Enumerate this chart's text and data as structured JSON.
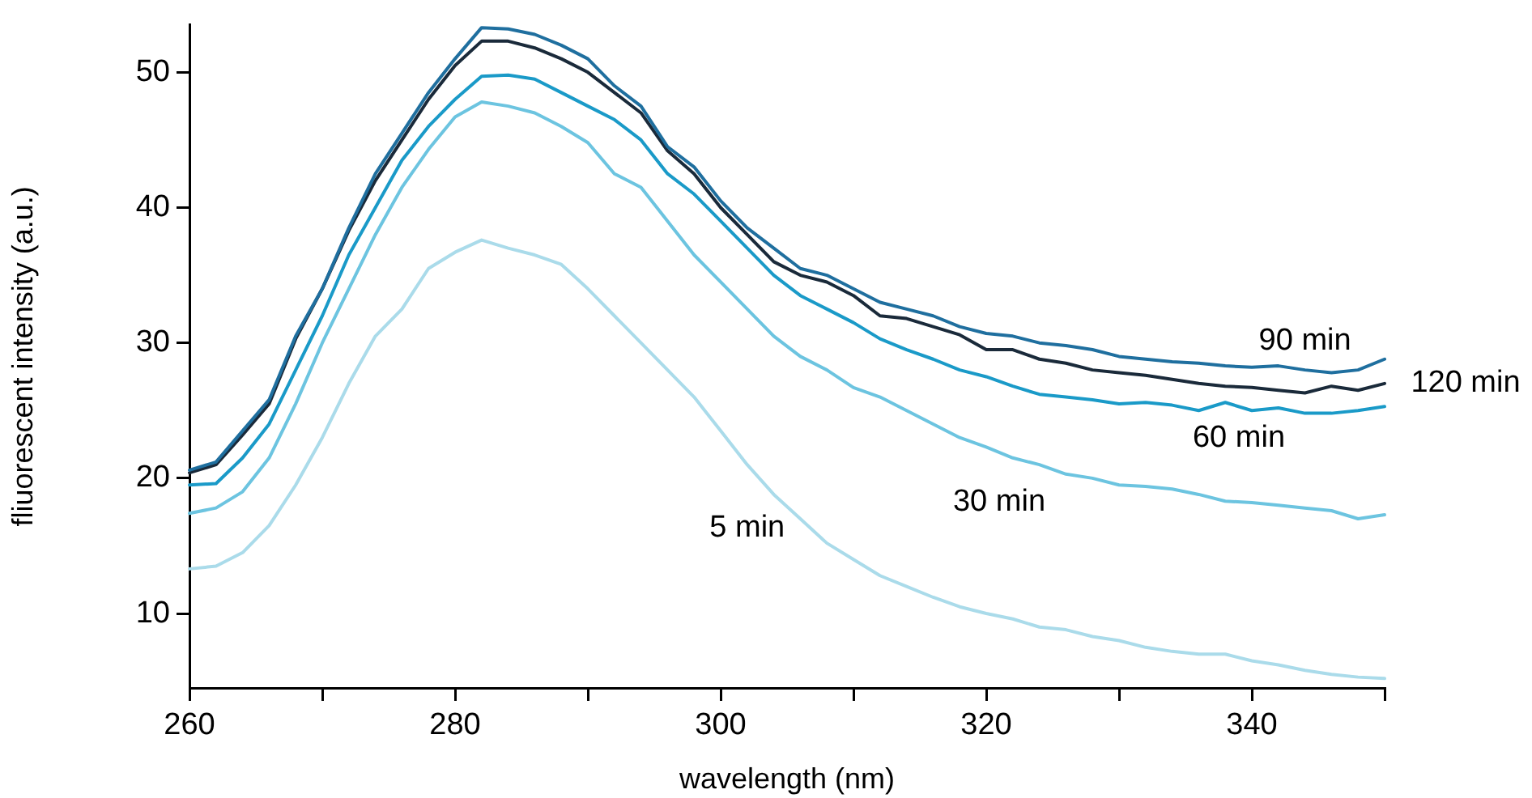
{
  "chart_data": {
    "type": "line",
    "xlabel": "wavelength (nm)",
    "ylabel": "fliuorescent intensity (a.u.)",
    "x": [
      260,
      262,
      264,
      266,
      268,
      270,
      272,
      274,
      276,
      278,
      280,
      282,
      284,
      286,
      288,
      290,
      292,
      294,
      296,
      298,
      300,
      302,
      304,
      306,
      308,
      310,
      312,
      314,
      316,
      318,
      320,
      322,
      324,
      326,
      328,
      330,
      332,
      334,
      336,
      338,
      340,
      342,
      344,
      346,
      348,
      350
    ],
    "series": [
      {
        "name": "5 min",
        "color": "#aadbea",
        "values": [
          13.3,
          13.5,
          14.5,
          16.5,
          19.5,
          23,
          27,
          30.5,
          32.5,
          35.5,
          36.7,
          37.6,
          37,
          36.5,
          35.8,
          34,
          32,
          30,
          28,
          26,
          23.5,
          21,
          18.8,
          17,
          15.2,
          14,
          12.8,
          12,
          11.2,
          10.5,
          10,
          9.6,
          9,
          8.8,
          8.3,
          8,
          7.5,
          7.2,
          7,
          7,
          6.5,
          6.2,
          5.8,
          5.5,
          5.3,
          5.2
        ]
      },
      {
        "name": "30 min",
        "color": "#6cc4e0",
        "values": [
          17.4,
          17.8,
          19,
          21.5,
          25.5,
          30,
          34,
          38,
          41.5,
          44.3,
          46.7,
          47.8,
          47.5,
          47,
          46,
          44.8,
          42.5,
          41.5,
          39,
          36.5,
          34.5,
          32.5,
          30.5,
          29,
          28,
          26.7,
          26,
          25,
          24,
          23,
          22.3,
          21.5,
          21,
          20.3,
          20,
          19.5,
          19.4,
          19.2,
          18.8,
          18.3,
          18.2,
          18,
          17.8,
          17.6,
          17,
          17.3
        ]
      },
      {
        "name": "60 min",
        "color": "#1a9ac8",
        "values": [
          19.5,
          19.6,
          21.5,
          24,
          28,
          32,
          36.5,
          40,
          43.5,
          46,
          48,
          49.7,
          49.8,
          49.5,
          48.5,
          47.5,
          46.5,
          45,
          42.5,
          41,
          39,
          37,
          35,
          33.5,
          32.5,
          31.5,
          30.3,
          29.5,
          28.8,
          28,
          27.5,
          26.8,
          26.2,
          26,
          25.8,
          25.5,
          25.6,
          25.4,
          25,
          25.6,
          25,
          25.2,
          24.8,
          24.8,
          25,
          25.3
        ]
      },
      {
        "name": "90 min",
        "color": "#1f6f9f",
        "values": [
          20.6,
          21.2,
          23.5,
          25.8,
          30.5,
          34,
          38.5,
          42.5,
          45.5,
          48.5,
          51,
          53.3,
          53.2,
          52.8,
          52,
          51,
          49,
          47.5,
          44.5,
          43,
          40.5,
          38.5,
          37,
          35.5,
          35,
          34,
          33,
          32.5,
          32,
          31.2,
          30.7,
          30.5,
          30,
          29.8,
          29.5,
          29,
          28.8,
          28.6,
          28.5,
          28.3,
          28.2,
          28.3,
          28,
          27.8,
          28,
          28.8
        ]
      },
      {
        "name": "120 min",
        "color": "#1a2a3a",
        "values": [
          20.4,
          21,
          23.2,
          25.5,
          30.3,
          34,
          38.3,
          42,
          45,
          48,
          50.5,
          52.3,
          52.3,
          51.8,
          51,
          50,
          48.5,
          47,
          44.2,
          42.5,
          40,
          38,
          36,
          35,
          34.5,
          33.5,
          32,
          31.8,
          31.2,
          30.6,
          29.5,
          29.5,
          28.8,
          28.5,
          28,
          27.8,
          27.6,
          27.3,
          27,
          26.8,
          26.7,
          26.5,
          26.3,
          26.8,
          26.5,
          27
        ]
      }
    ],
    "xlim": [
      260,
      350
    ],
    "ylim": [
      4.5,
      53.5
    ],
    "xticks": [
      260,
      {
        "value": 270,
        "label": null
      },
      280,
      {
        "value": 290,
        "label": null
      },
      300,
      {
        "value": 310,
        "label": null
      },
      320,
      {
        "value": 330,
        "label": null
      },
      340,
      {
        "value": 350,
        "label": null
      }
    ],
    "yticks": [
      10,
      20,
      30,
      40,
      50
    ],
    "grid": false,
    "legend": false,
    "marker": "none",
    "line_style": "solid"
  }
}
